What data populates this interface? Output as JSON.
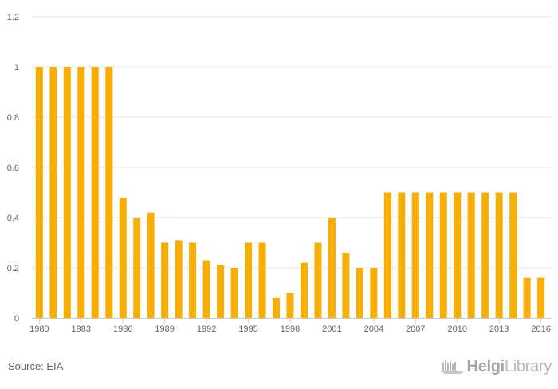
{
  "footer": {
    "source": "Source: EIA",
    "brand_strong": "Helgi",
    "brand_light": "Library"
  },
  "chart_data": {
    "type": "bar",
    "title": "",
    "xlabel": "",
    "ylabel": "",
    "ylim": [
      0,
      1.2
    ],
    "yticks": [
      0,
      0.2,
      0.4,
      0.6,
      0.8,
      1,
      1.2
    ],
    "xtick_labels": [
      "1980",
      "1983",
      "1986",
      "1989",
      "1992",
      "1995",
      "1998",
      "2001",
      "2004",
      "2007",
      "2010",
      "2013",
      "2016"
    ],
    "grid": true,
    "legend": "none",
    "colors": {
      "bar": "#F7AE06",
      "grid": "#e6e6e6",
      "axis": "#cccccc",
      "tick_text": "#666666"
    },
    "categories": [
      "1980",
      "1981",
      "1982",
      "1983",
      "1984",
      "1985",
      "1986",
      "1987",
      "1988",
      "1989",
      "1990",
      "1991",
      "1992",
      "1993",
      "1994",
      "1995",
      "1996",
      "1997",
      "1998",
      "1999",
      "2000",
      "2001",
      "2002",
      "2003",
      "2004",
      "2005",
      "2006",
      "2007",
      "2008",
      "2009",
      "2010",
      "2011",
      "2012",
      "2013",
      "2014",
      "2015",
      "2016"
    ],
    "values": [
      1,
      1,
      1,
      1,
      1,
      1,
      0.48,
      0.4,
      0.42,
      0.3,
      0.31,
      0.3,
      0.23,
      0.21,
      0.2,
      0.3,
      0.3,
      0.08,
      0.1,
      0.22,
      0.3,
      0.4,
      0.26,
      0.2,
      0.2,
      0.5,
      0.5,
      0.5,
      0.5,
      0.5,
      0.5,
      0.5,
      0.5,
      0.5,
      0.5,
      0.16,
      0.16
    ]
  }
}
